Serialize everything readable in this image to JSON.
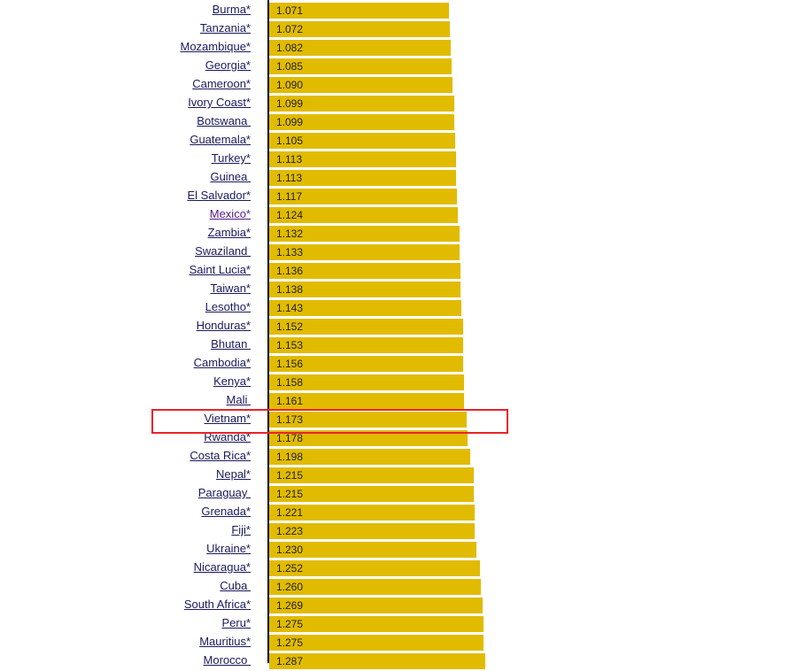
{
  "colors": {
    "bar": "#e1bb00",
    "link": "#1a1a5e",
    "visited_link": "#551a8b",
    "highlight": "#e8242b",
    "axis": "#000000"
  },
  "highlighted_row": "Vietnam*",
  "chart_data": {
    "type": "bar",
    "orientation": "horizontal",
    "categories": [
      "Burma*",
      "Tanzania*",
      "Mozambique*",
      "Georgia*",
      "Cameroon*",
      "Ivory Coast*",
      "Botswana ",
      "Guatemala*",
      "Turkey*",
      "Guinea ",
      "El Salvador*",
      "Mexico*",
      "Zambia*",
      "Swaziland ",
      "Saint Lucia*",
      "Taiwan*",
      "Lesotho*",
      "Honduras*",
      "Bhutan ",
      "Cambodia*",
      "Kenya*",
      "Mali ",
      "Vietnam*",
      "Rwanda*",
      "Costa Rica*",
      "Nepal*",
      "Paraguay ",
      "Grenada*",
      "Fiji*",
      "Ukraine*",
      "Nicaragua*",
      "Cuba ",
      "South Africa*",
      "Peru*",
      "Mauritius*",
      "Morocco "
    ],
    "values": [
      1.071,
      1.072,
      1.082,
      1.085,
      1.09,
      1.099,
      1.099,
      1.105,
      1.113,
      1.113,
      1.117,
      1.124,
      1.132,
      1.133,
      1.136,
      1.138,
      1.143,
      1.152,
      1.153,
      1.156,
      1.158,
      1.161,
      1.173,
      1.178,
      1.198,
      1.215,
      1.215,
      1.221,
      1.223,
      1.23,
      1.252,
      1.26,
      1.269,
      1.275,
      1.275,
      1.287
    ],
    "labels": [
      "1.071",
      "1.072",
      "1.082",
      "1.085",
      "1.090",
      "1.099",
      "1.099",
      "1.105",
      "1.113",
      "1.113",
      "1.117",
      "1.124",
      "1.132",
      "1.133",
      "1.136",
      "1.138",
      "1.143",
      "1.152",
      "1.153",
      "1.156",
      "1.158",
      "1.161",
      "1.173",
      "1.178",
      "1.198",
      "1.215",
      "1.215",
      "1.221",
      "1.223",
      "1.230",
      "1.252",
      "1.260",
      "1.269",
      "1.275",
      "1.275",
      "1.287"
    ],
    "visited": [
      "Mexico*"
    ],
    "xlim": [
      0,
      4.74
    ],
    "grid": false,
    "legend": "none"
  }
}
